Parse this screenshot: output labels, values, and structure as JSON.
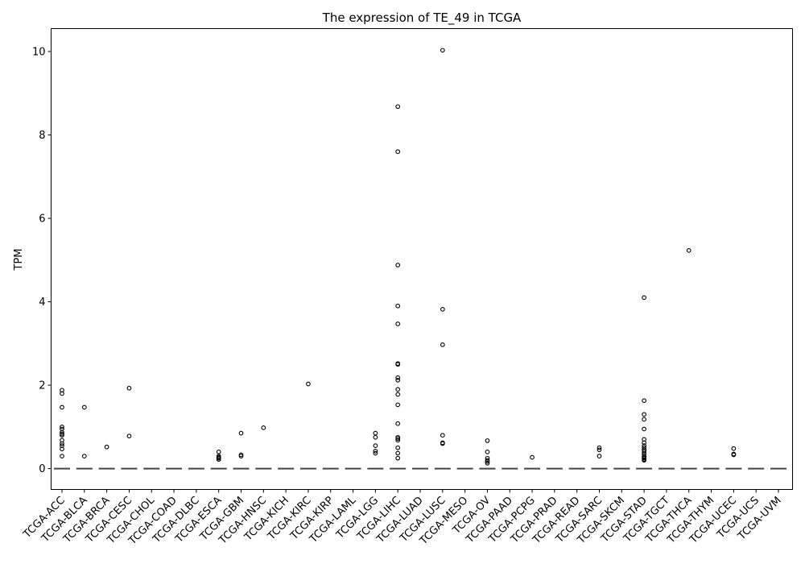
{
  "chart_data": {
    "type": "box",
    "title": "The expression of TE_49 in TCGA",
    "xlabel": "",
    "ylabel": "TPM",
    "ylim": [
      -0.5,
      10.55
    ],
    "yticks": [
      0,
      2,
      4,
      6,
      8,
      10
    ],
    "grid": false,
    "categories": [
      "TCGA-ACC",
      "TCGA-BLCA",
      "TCGA-BRCA",
      "TCGA-CESC",
      "TCGA-CHOL",
      "TCGA-COAD",
      "TCGA-DLBC",
      "TCGA-ESCA",
      "TCGA-GBM",
      "TCGA-HNSC",
      "TCGA-KICH",
      "TCGA-KIRC",
      "TCGA-KIRP",
      "TCGA-LAML",
      "TCGA-LGG",
      "TCGA-LIHC",
      "TCGA-LUAD",
      "TCGA-LUSC",
      "TCGA-MESO",
      "TCGA-OV",
      "TCGA-PAAD",
      "TCGA-PCPG",
      "TCGA-PRAD",
      "TCGA-READ",
      "TCGA-SARC",
      "TCGA-SKCM",
      "TCGA-STAD",
      "TCGA-TGCT",
      "TCGA-THCA",
      "TCGA-THYM",
      "TCGA-UCEC",
      "TCGA-UCS",
      "TCGA-UVM"
    ],
    "median": [
      0,
      0,
      0,
      0,
      0,
      0,
      0,
      0,
      0,
      0,
      0,
      0,
      0,
      0,
      0,
      0,
      0,
      0,
      0,
      0,
      0,
      0,
      0,
      0,
      0,
      0,
      0,
      0,
      0,
      0,
      0,
      0,
      0
    ],
    "outliers": [
      [
        1.88,
        1.8,
        1.47,
        1.0,
        0.95,
        0.87,
        0.83,
        0.8,
        0.68,
        0.6,
        0.55,
        0.47,
        0.3
      ],
      [
        1.47,
        0.3
      ],
      [
        0.52
      ],
      [
        1.93,
        0.78
      ],
      [],
      [],
      [],
      [
        0.4,
        0.3,
        0.27,
        0.25,
        0.22
      ],
      [
        0.85,
        0.33,
        0.3
      ],
      [
        0.98
      ],
      [],
      [
        2.03
      ],
      [],
      [],
      [
        0.85,
        0.75,
        0.55,
        0.42,
        0.37
      ],
      [
        8.68,
        7.6,
        4.88,
        3.9,
        3.47,
        2.52,
        2.5,
        2.18,
        2.12,
        1.9,
        1.78,
        1.53,
        1.08,
        0.75,
        0.72,
        0.68,
        0.5,
        0.37,
        0.25
      ],
      [],
      [
        10.03,
        3.82,
        2.97,
        0.8,
        0.62,
        0.6
      ],
      [],
      [
        0.67,
        0.4,
        0.25,
        0.2,
        0.17,
        0.13
      ],
      [],
      [
        0.27
      ],
      [],
      [],
      [
        0.5,
        0.45,
        0.3
      ],
      [],
      [
        4.1,
        1.63,
        1.3,
        1.18,
        0.95,
        0.7,
        0.62,
        0.55,
        0.5,
        0.45,
        0.4,
        0.35,
        0.3,
        0.27,
        0.25,
        0.22,
        0.2
      ],
      [],
      [
        5.23
      ],
      [],
      [
        0.48,
        0.35,
        0.33
      ],
      [],
      []
    ]
  }
}
